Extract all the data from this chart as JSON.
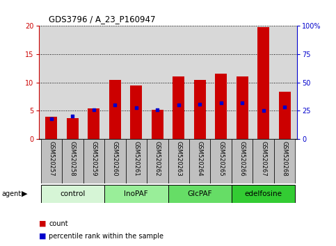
{
  "title": "GDS3796 / A_23_P160947",
  "samples": [
    "GSM520257",
    "GSM520258",
    "GSM520259",
    "GSM520260",
    "GSM520261",
    "GSM520262",
    "GSM520263",
    "GSM520264",
    "GSM520265",
    "GSM520266",
    "GSM520267",
    "GSM520268"
  ],
  "count_values": [
    3.9,
    3.7,
    5.4,
    10.4,
    9.4,
    5.2,
    11.1,
    10.5,
    11.5,
    11.0,
    19.8,
    8.3
  ],
  "percentile_values": [
    18.0,
    20.5,
    26.0,
    30.0,
    27.5,
    26.0,
    30.0,
    30.5,
    32.0,
    32.0,
    25.0,
    28.5
  ],
  "groups": [
    {
      "label": "control",
      "start": 0,
      "end": 3,
      "color": "#d6f5d6"
    },
    {
      "label": "InoPAF",
      "start": 3,
      "end": 6,
      "color": "#99ee99"
    },
    {
      "label": "GlcPAF",
      "start": 6,
      "end": 9,
      "color": "#66dd66"
    },
    {
      "label": "edelfosine",
      "start": 9,
      "end": 12,
      "color": "#33cc33"
    }
  ],
  "ylim_left": [
    0,
    20
  ],
  "ylim_right": [
    0,
    100
  ],
  "yticks_left": [
    0,
    5,
    10,
    15,
    20
  ],
  "yticks_right": [
    0,
    25,
    50,
    75,
    100
  ],
  "bar_color": "#cc0000",
  "dot_color": "#0000cc",
  "left_axis_color": "#cc0000",
  "right_axis_color": "#0000cc",
  "grid_color": "#000000",
  "plot_bg_color": "#d8d8d8",
  "label_bg_color": "#c0c0c0",
  "bar_width": 0.55,
  "dot_size": 12
}
